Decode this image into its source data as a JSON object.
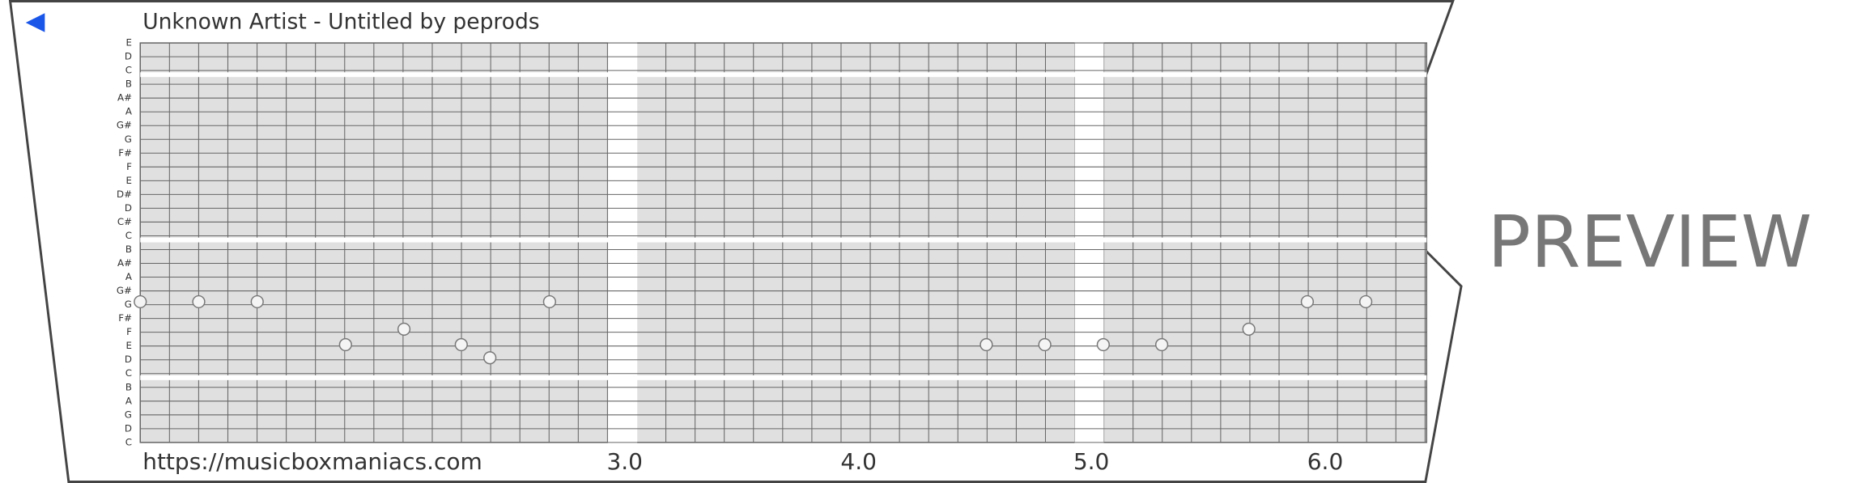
{
  "header": {
    "title": "Unknown Artist - Untitled by peprods"
  },
  "row_labels": [
    "E",
    "D",
    "C",
    "B",
    "A#",
    "A",
    "G#",
    "G",
    "F#",
    "F",
    "E",
    "D#",
    "D",
    "C#",
    "C",
    "B",
    "A#",
    "A",
    "G#",
    "G",
    "F#",
    "F",
    "E",
    "D",
    "C",
    "B",
    "A",
    "G",
    "D",
    "C"
  ],
  "measure_labels": [
    "3.0",
    "4.0",
    "5.0",
    "6.0"
  ],
  "footer": {
    "url": "https://musicboxmaniacs.com"
  },
  "watermark": "PREVIEW"
}
